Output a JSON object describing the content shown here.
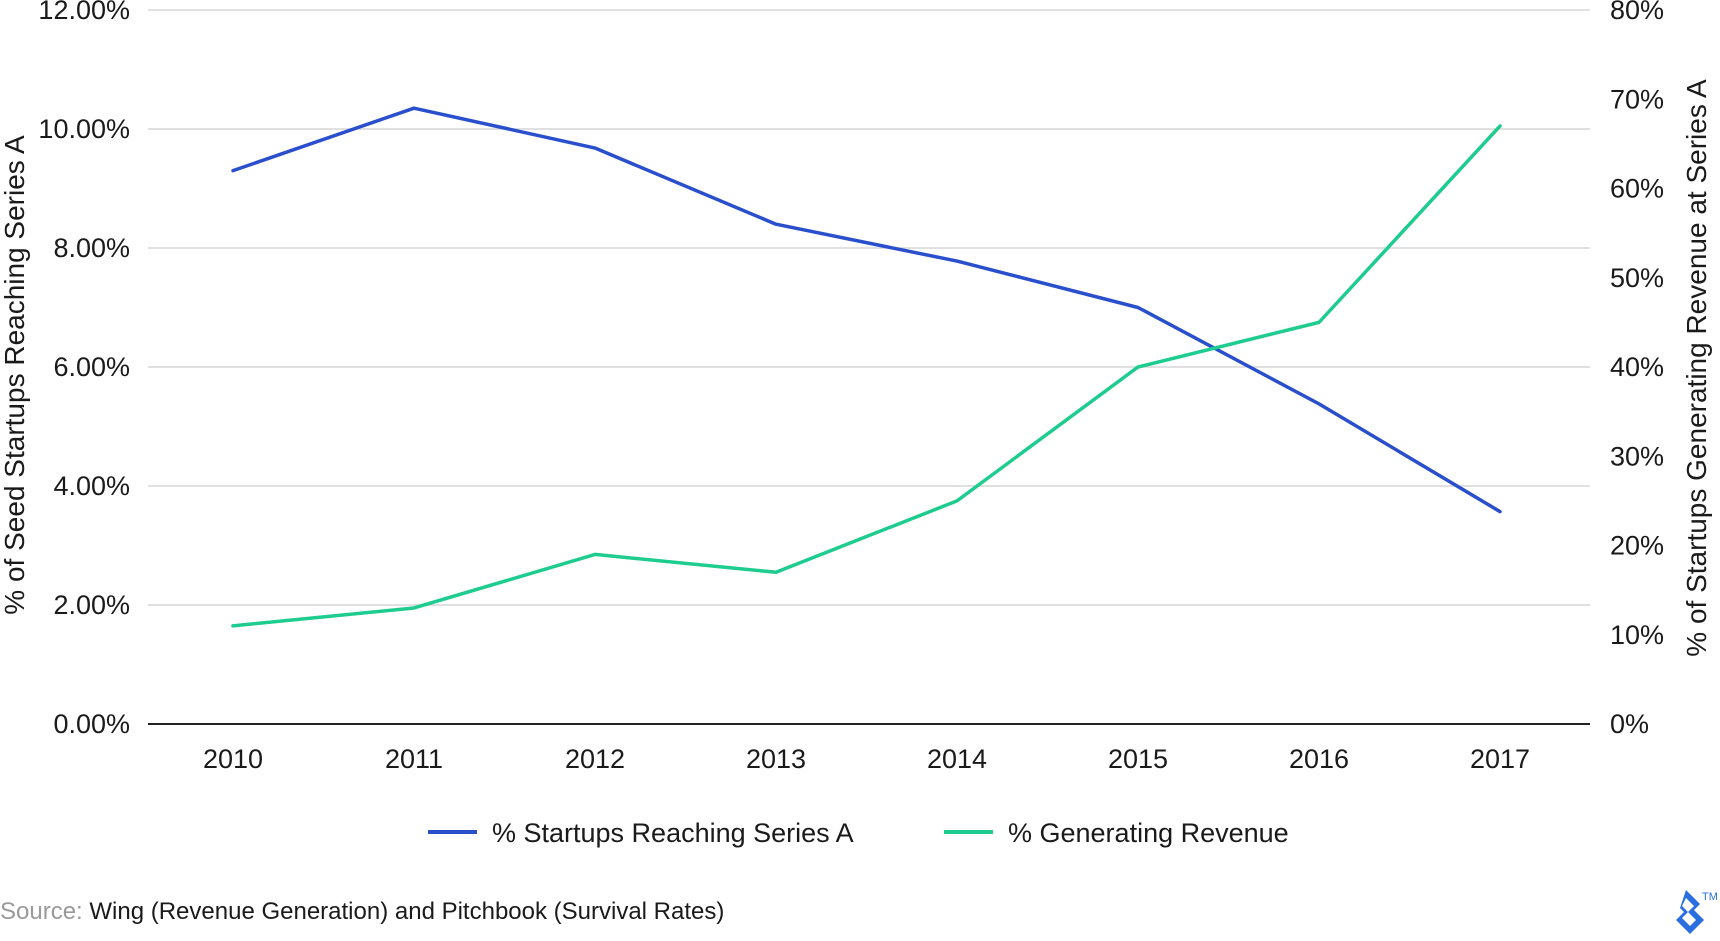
{
  "chart_data": {
    "type": "line",
    "categories": [
      "2010",
      "2011",
      "2012",
      "2013",
      "2014",
      "2015",
      "2016",
      "2017"
    ],
    "series": [
      {
        "name": "% Startups Reaching Series A",
        "axis": "left",
        "color": "#2a4fcc",
        "values": [
          9.3,
          10.35,
          9.68,
          8.4,
          7.78,
          7.0,
          5.38,
          3.57
        ]
      },
      {
        "name": "% Generating Revenue",
        "axis": "right",
        "color": "#1ecc8f",
        "values": [
          11,
          13,
          19,
          17,
          25,
          40,
          45,
          67
        ]
      }
    ],
    "ylabel": "% of Seed Startups Reaching Series A",
    "y2label": "% of Startups Generating Revenue at Series A",
    "ylim": [
      0,
      12
    ],
    "y2lim": [
      0,
      80
    ],
    "yticks": [
      "0.00%",
      "2.00%",
      "4.00%",
      "6.00%",
      "8.00%",
      "10.00%",
      "12.00%"
    ],
    "y2ticks": [
      "0%",
      "10%",
      "20%",
      "30%",
      "40%",
      "50%",
      "60%",
      "70%",
      "80%"
    ],
    "grid": true,
    "legend": "bottom-center"
  },
  "source": {
    "label": "Source:",
    "text": " Wing (Revenue Generation) and Pitchbook (Survival Rates)"
  },
  "logo": {
    "trademark": "TM",
    "color": "#2a6ee0",
    "icon": "brand-logo-icon"
  }
}
